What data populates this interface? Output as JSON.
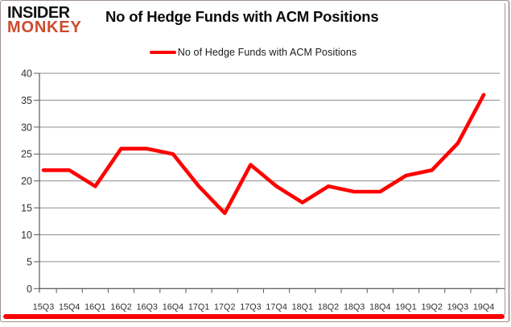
{
  "brand": {
    "line1": "INSIDER",
    "line2": "MONKEY"
  },
  "header": {
    "title": "No of Hedge Funds with ACM Positions"
  },
  "legend": {
    "label": "No of Hedge Funds with ACM Positions"
  },
  "colors": {
    "series": "#fe0000",
    "brand_accent": "#cd4a2d",
    "brand_dark": "#141414",
    "gridline": "#8c8c8c",
    "axis": "#595959",
    "tick_label": "#303030",
    "bottom_bar": "#fb0000"
  },
  "chart_data": {
    "type": "line",
    "title": "No of Hedge Funds with ACM Positions",
    "categories": [
      "15Q3",
      "15Q4",
      "16Q1",
      "16Q2",
      "16Q3",
      "16Q4",
      "17Q1",
      "17Q2",
      "17Q3",
      "17Q4",
      "18Q1",
      "18Q2",
      "18Q3",
      "18Q4",
      "19Q1",
      "19Q2",
      "19Q3",
      "19Q4"
    ],
    "series": [
      {
        "name": "No of Hedge Funds with ACM Positions",
        "color": "#fe0000",
        "values": [
          22,
          22,
          19,
          26,
          26,
          25,
          19,
          14,
          23,
          19,
          16,
          19,
          18,
          18,
          21,
          22,
          27,
          36
        ]
      }
    ],
    "xlabel": "",
    "ylabel": "",
    "ylim": [
      0,
      40
    ],
    "ytick_step": 5,
    "grid": true,
    "legend_position": "top-center"
  }
}
